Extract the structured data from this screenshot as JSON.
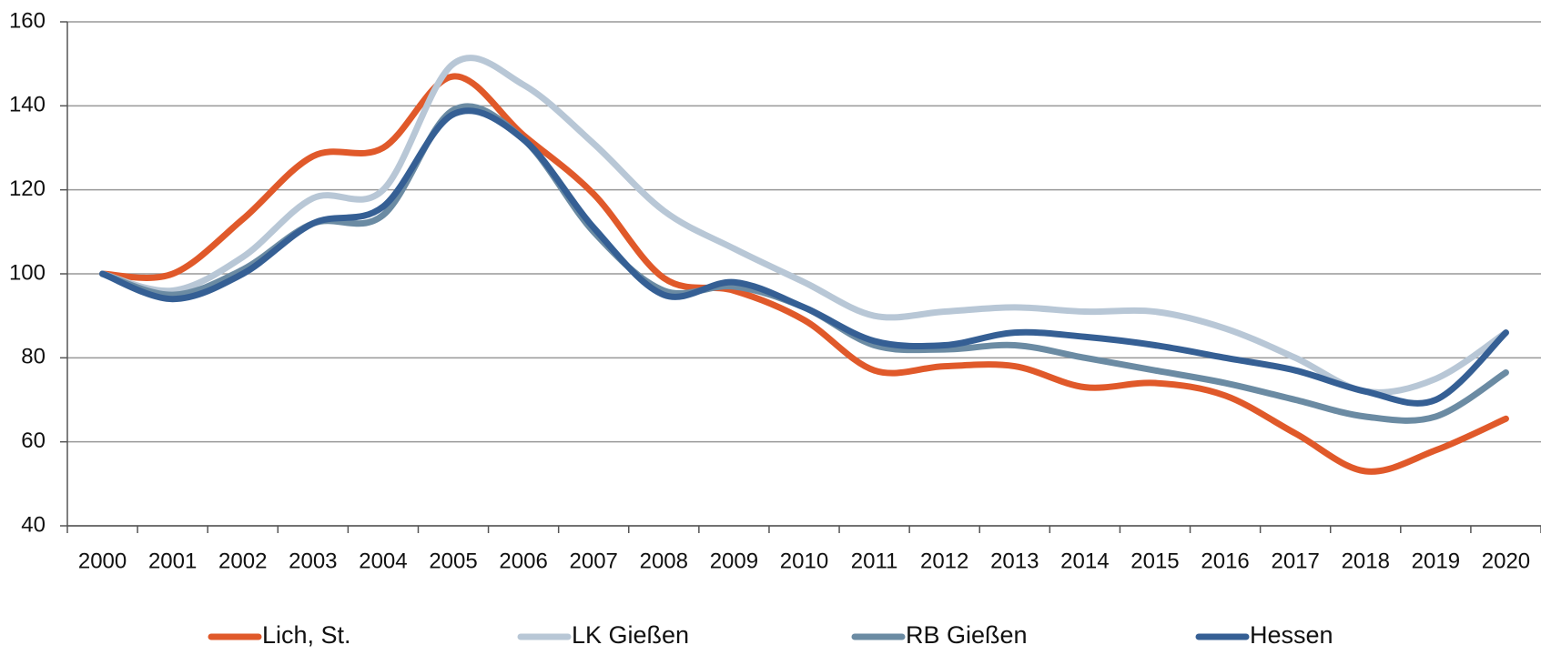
{
  "chart_data": {
    "type": "line",
    "categories": [
      "2000",
      "2001",
      "2002",
      "2003",
      "2004",
      "2005",
      "2006",
      "2007",
      "2008",
      "2009",
      "2010",
      "2011",
      "2012",
      "2013",
      "2014",
      "2015",
      "2016",
      "2017",
      "2018",
      "2019",
      "2020"
    ],
    "series": [
      {
        "name": "Lich, St.",
        "color": "#e0592a",
        "values": [
          100,
          100,
          113,
          128,
          130,
          147,
          133,
          119,
          99,
          96,
          89,
          77,
          78,
          78,
          73,
          74,
          71,
          62,
          53,
          58,
          65.5
        ]
      },
      {
        "name": "LK Gießen",
        "color": "#b8c7d6",
        "values": [
          100,
          96,
          104,
          118,
          120,
          150,
          145,
          131,
          115,
          106,
          98,
          90,
          91,
          92,
          91,
          91,
          87,
          80,
          72,
          75,
          86
        ]
      },
      {
        "name": "RB Gießen",
        "color": "#6b8ba3",
        "values": [
          100,
          95,
          101,
          112,
          114,
          139,
          132,
          110,
          96,
          97,
          92,
          83,
          82,
          83,
          80,
          77,
          74,
          70,
          66,
          66,
          76.5
        ]
      },
      {
        "name": "Hessen",
        "color": "#355f94",
        "values": [
          100,
          94,
          100,
          112,
          116,
          138,
          132,
          111,
          95,
          98,
          92,
          84,
          83,
          86,
          85,
          83,
          80,
          77,
          72,
          70,
          86
        ]
      }
    ],
    "ylim": [
      40,
      160
    ],
    "yticks": [
      40,
      60,
      80,
      100,
      120,
      140,
      160
    ],
    "grid": true
  }
}
